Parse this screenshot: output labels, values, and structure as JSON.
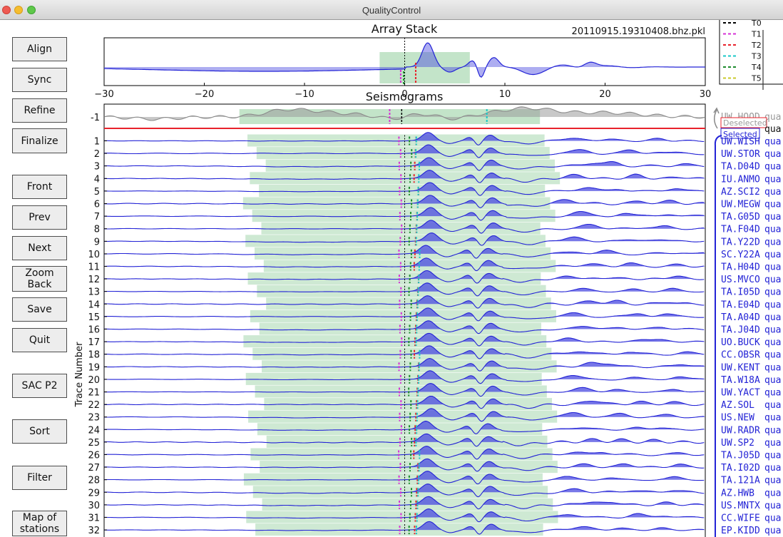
{
  "window": {
    "title": "QualityControl"
  },
  "buttons": [
    {
      "id": "align",
      "label": "Align"
    },
    {
      "id": "sync",
      "label": "Sync"
    },
    {
      "id": "refine",
      "label": "Refine"
    },
    {
      "id": "finalize",
      "label": "Finalize"
    },
    {
      "id": "front",
      "label": "Front"
    },
    {
      "id": "prev",
      "label": "Prev"
    },
    {
      "id": "next",
      "label": "Next"
    },
    {
      "id": "zoom-back",
      "label": "Zoom\nBack"
    },
    {
      "id": "save",
      "label": "Save"
    },
    {
      "id": "quit",
      "label": "Quit"
    },
    {
      "id": "sac-p2",
      "label": "SAC P2"
    },
    {
      "id": "sort",
      "label": "Sort"
    },
    {
      "id": "filter",
      "label": "Filter"
    },
    {
      "id": "map-of-stations",
      "label": "Map of\nstations"
    }
  ],
  "stack": {
    "title": "Array Stack",
    "filename": "20110915.19310408.bhz.pkl",
    "xticks": [
      "−30",
      "−20",
      "−10",
      "0",
      "10",
      "20",
      "30"
    ],
    "xlim": [
      -30,
      30
    ]
  },
  "legend": {
    "entries": [
      {
        "label": "T0",
        "color": "#000000"
      },
      {
        "label": "T1",
        "color": "#d62fd6"
      },
      {
        "label": "T2",
        "color": "#e8222b"
      },
      {
        "label": "T3",
        "color": "#17c7c7"
      },
      {
        "label": "T4",
        "color": "#1b8a2b"
      },
      {
        "label": "T5",
        "color": "#c9c92a"
      }
    ]
  },
  "seismograms": {
    "title": "Seismograms",
    "ylabel": "Trace Number",
    "deselected_label": "Deselected",
    "selected_label": "Selected",
    "deselected": {
      "number": "-1",
      "station": "UW.HOOD",
      "quality": "qua"
    },
    "traces": [
      {
        "number": "1",
        "station": "UW.WISH",
        "quality": "qua"
      },
      {
        "number": "2",
        "station": "UW.STOR",
        "quality": "qua"
      },
      {
        "number": "3",
        "station": "TA.D04D",
        "quality": "qua"
      },
      {
        "number": "4",
        "station": "IU.ANMO",
        "quality": "qua"
      },
      {
        "number": "5",
        "station": "AZ.SCI2",
        "quality": "qua"
      },
      {
        "number": "6",
        "station": "UW.MEGW",
        "quality": "qua"
      },
      {
        "number": "7",
        "station": "TA.G05D",
        "quality": "qua"
      },
      {
        "number": "8",
        "station": "TA.F04D",
        "quality": "qua"
      },
      {
        "number": "9",
        "station": "TA.Y22D",
        "quality": "qua"
      },
      {
        "number": "10",
        "station": "SC.Y22A",
        "quality": "qua"
      },
      {
        "number": "11",
        "station": "TA.H04D",
        "quality": "qua"
      },
      {
        "number": "12",
        "station": "US.MVCO",
        "quality": "qua"
      },
      {
        "number": "13",
        "station": "TA.I05D",
        "quality": "qua"
      },
      {
        "number": "14",
        "station": "TA.E04D",
        "quality": "qua"
      },
      {
        "number": "15",
        "station": "TA.A04D",
        "quality": "qua"
      },
      {
        "number": "16",
        "station": "TA.J04D",
        "quality": "qua"
      },
      {
        "number": "17",
        "station": "UO.BUCK",
        "quality": "qua"
      },
      {
        "number": "18",
        "station": "CC.OBSR",
        "quality": "qua"
      },
      {
        "number": "19",
        "station": "UW.KENT",
        "quality": "qua"
      },
      {
        "number": "20",
        "station": "TA.W18A",
        "quality": "qua"
      },
      {
        "number": "21",
        "station": "UW.YACT",
        "quality": "qua"
      },
      {
        "number": "22",
        "station": "AZ.SOL",
        "quality": "qua"
      },
      {
        "number": "23",
        "station": "US.NEW",
        "quality": "qua"
      },
      {
        "number": "24",
        "station": "UW.RADR",
        "quality": "qua"
      },
      {
        "number": "25",
        "station": "UW.SP2",
        "quality": "qua"
      },
      {
        "number": "26",
        "station": "TA.J05D",
        "quality": "qua"
      },
      {
        "number": "27",
        "station": "TA.I02D",
        "quality": "qua"
      },
      {
        "number": "28",
        "station": "TA.121A",
        "quality": "qua"
      },
      {
        "number": "29",
        "station": "AZ.HWB",
        "quality": "qua"
      },
      {
        "number": "30",
        "station": "US.MNTX",
        "quality": "qua"
      },
      {
        "number": "31",
        "station": "CC.WIFE",
        "quality": "qua"
      },
      {
        "number": "32",
        "station": "EP.KIDD",
        "quality": "qua"
      }
    ]
  },
  "colors": {
    "trace": "#2323d6",
    "fill": "#4a4ae0",
    "window_fill": "#b9dfc0",
    "deselected_trace": "#8a8a8a",
    "separator": "#e8222b"
  }
}
